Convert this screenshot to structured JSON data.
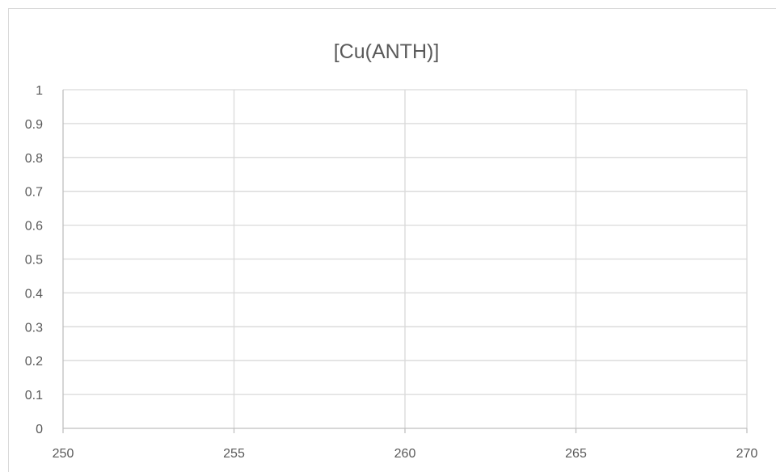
{
  "chart_data": {
    "type": "line",
    "title": "[Cu(ANTH)]",
    "xlabel": "",
    "ylabel": "",
    "xlim": [
      250,
      270
    ],
    "ylim": [
      0,
      1
    ],
    "x_ticks": [
      "250",
      "255",
      "260",
      "265",
      "270"
    ],
    "y_ticks": [
      "0",
      "0.1",
      "0.2",
      "0.3",
      "0.4",
      "0.5",
      "0.6",
      "0.7",
      "0.8",
      "0.9",
      "1"
    ],
    "series": [],
    "grid": true,
    "legend": "none"
  },
  "colors": {
    "text": "#595959",
    "gridline": "#d9d9d9",
    "axis": "#bfbfbf",
    "frame": "#d9d9d9"
  }
}
